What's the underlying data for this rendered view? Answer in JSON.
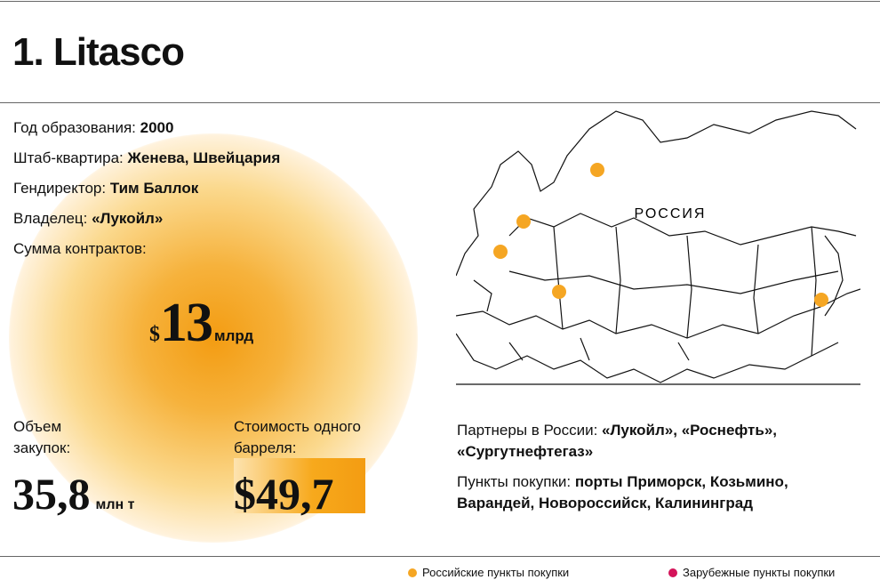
{
  "header": {
    "title": "1. Litasco"
  },
  "facts": [
    {
      "label": "Год образования:",
      "value": "2000"
    },
    {
      "label": "Штаб-квартира:",
      "value": "Женева, Швейцария"
    },
    {
      "label": "Гендиректор:",
      "value": "Тим Баллок"
    },
    {
      "label": "Владелец:",
      "value": "«Лукойл»"
    },
    {
      "label": "Сумма контрактов:"
    }
  ],
  "contracts": {
    "currency": "$",
    "amount": "13",
    "unit": "млрд"
  },
  "volume": {
    "label": "Объем закупок:",
    "value": "35,8",
    "unit": "млн т"
  },
  "price": {
    "label": "Стоимость одного барреля:",
    "value": "$49,7"
  },
  "map": {
    "label": "РОССИЯ"
  },
  "partners": {
    "label": "Партнеры в России:",
    "value": "«Лукойл», «Роснефть», «Сургутнефтегаз»"
  },
  "points": {
    "label": "Пункты покупки:",
    "value": "порты Приморск, Козьмино, Варандей, Новороссийск, Калининград"
  },
  "legend": [
    "Российские пункты покупки",
    "Зарубежные пункты покупки"
  ]
}
